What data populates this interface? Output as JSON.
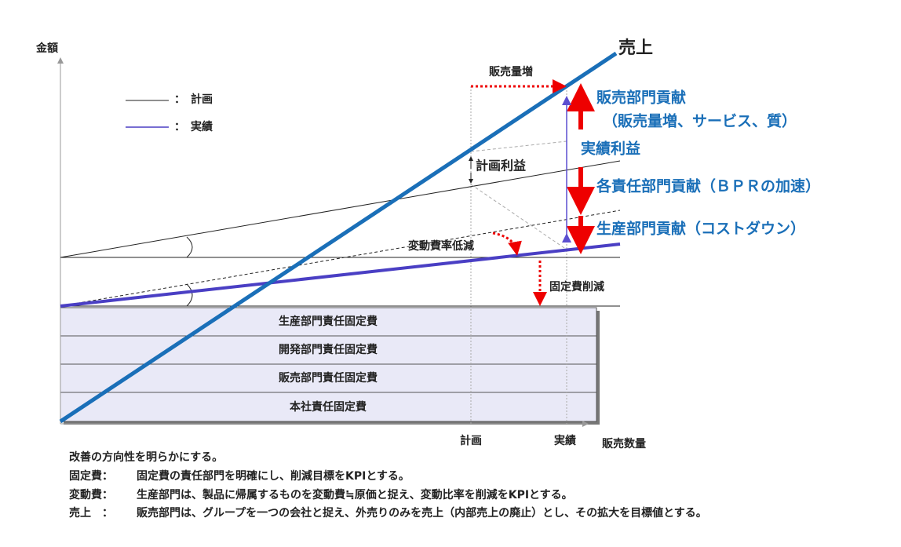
{
  "axes": {
    "y_label": "金額",
    "x_label": "販売数量",
    "x_marks": [
      "計画",
      "実績"
    ]
  },
  "legend": [
    {
      "label": "：　計画"
    },
    {
      "label": "：　実績"
    }
  ],
  "fixed_costs": [
    "生産部門責任固定費",
    "開発部門責任固定費",
    "販売部門責任固定費",
    "本社責任固定費"
  ],
  "annotations": {
    "sales": "売上",
    "sales_volume_up": "販売量増",
    "sales_contribution": "販売部門貢献",
    "sales_contribution_detail": "（販売量増、サービス、質）",
    "actual_profit": "実績利益",
    "plan_profit": "計画利益",
    "bpr_contribution": "各責任部門貢献（ＢＰＲの加速）",
    "production_contribution": "生産部門貢献（コストダウン）",
    "variable_rate_down": "変動費率低減",
    "fixed_cost_down": "固定費削減"
  },
  "notes": {
    "intro": "改善の方向性を明らかにする。",
    "items": [
      {
        "label": "固定費：",
        "text": "固定費の責任部門を明確にし、削減目標をKPIとする。"
      },
      {
        "label": "変動費：",
        "text": "生産部門は、製品に帰属するものを変動費≒原価と捉え、変動比率を削減をKPIとする。"
      },
      {
        "label": "売上　：",
        "text": "販売部門は、グループを一つの会社と捉え、外売りのみを売上（内部売上の廃止）とし、その拡大を目標値とする。"
      }
    ]
  }
}
